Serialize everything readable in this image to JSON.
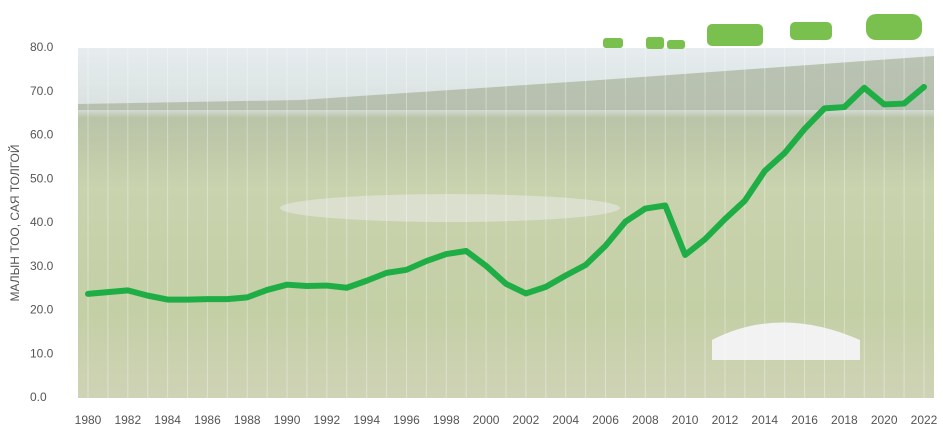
{
  "chart_data": {
    "type": "line",
    "y_label": "МАЛЫН ТОО, САЯ ТОЛГОЙ",
    "x": [
      1980,
      1981,
      1982,
      1983,
      1984,
      1985,
      1986,
      1987,
      1988,
      1989,
      1990,
      1991,
      1992,
      1993,
      1994,
      1995,
      1996,
      1997,
      1998,
      1999,
      2000,
      2001,
      2002,
      2003,
      2004,
      2005,
      2006,
      2007,
      2008,
      2009,
      2010,
      2011,
      2012,
      2013,
      2014,
      2015,
      2016,
      2017,
      2018,
      2019,
      2020,
      2021,
      2022
    ],
    "series": [
      {
        "color": "#1fae45",
        "values": [
          23.8,
          24.2,
          24.6,
          23.4,
          22.5,
          22.5,
          22.6,
          22.6,
          23.0,
          24.7,
          25.9,
          25.6,
          25.7,
          25.2,
          26.8,
          28.6,
          29.3,
          31.3,
          32.9,
          33.6,
          30.2,
          26.1,
          23.9,
          25.4,
          28.0,
          30.4,
          34.8,
          40.3,
          43.3,
          44.0,
          32.7,
          36.3,
          40.9,
          45.1,
          51.9,
          56.0,
          61.5,
          66.2,
          66.5,
          70.9,
          67.1,
          67.3,
          71.1
        ]
      }
    ],
    "xlim": [
      1980,
      2022
    ],
    "xticks": [
      1980,
      1982,
      1984,
      1986,
      1988,
      1990,
      1992,
      1994,
      1996,
      1998,
      2000,
      2002,
      2004,
      2006,
      2008,
      2010,
      2012,
      2014,
      2016,
      2018,
      2020,
      2022
    ],
    "ylim": [
      0,
      80
    ],
    "yticks": [
      {
        "value": 0,
        "label": "0.0"
      },
      {
        "value": 10,
        "label": "10.0"
      },
      {
        "value": 20,
        "label": "20.0"
      },
      {
        "value": 30,
        "label": "30.0"
      },
      {
        "value": 40,
        "label": "40.0"
      },
      {
        "value": 50,
        "label": "50.0"
      },
      {
        "value": 60,
        "label": "60.0"
      },
      {
        "value": 70,
        "label": "70.0"
      },
      {
        "value": 80,
        "label": "80.0"
      }
    ]
  }
}
